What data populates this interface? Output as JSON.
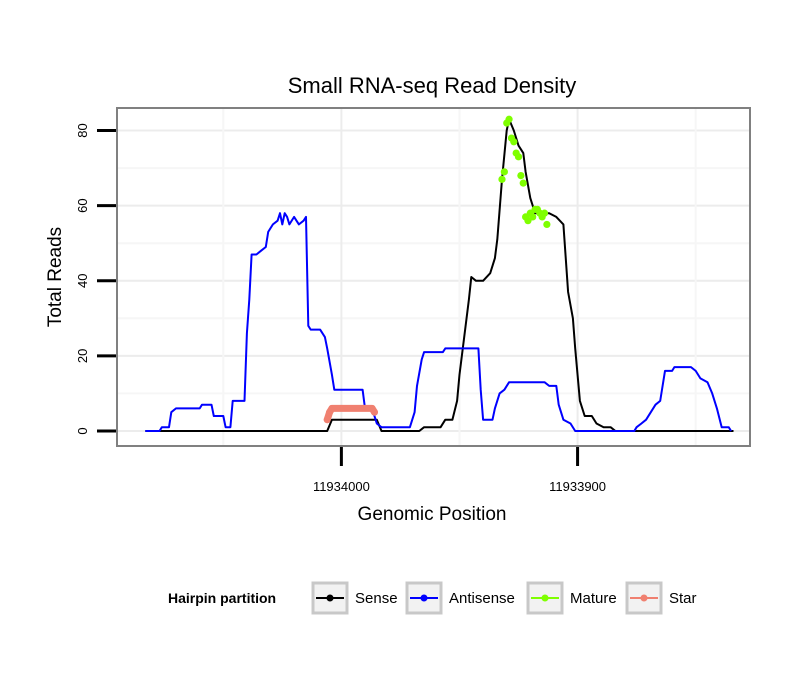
{
  "chart_data": {
    "type": "line",
    "title": "Small RNA-seq Read Density",
    "xlabel": "Genomic Position",
    "ylabel": "Total Reads",
    "x_reversed": true,
    "xlim": [
      11934095,
      11933827
    ],
    "ylim": [
      -4,
      86
    ],
    "x_ticks": [
      11934000,
      11933900
    ],
    "x_tick_labels": [
      "11934000",
      "11933900"
    ],
    "y_ticks": [
      0,
      20,
      40,
      60,
      80
    ],
    "y_tick_labels": [
      "0",
      "20",
      "40",
      "60",
      "80"
    ],
    "grid": true,
    "legend": {
      "title": "Hairpin partition",
      "position": "bottom",
      "entries": [
        {
          "name": "Sense",
          "color": "#000000"
        },
        {
          "name": "Antisense",
          "color": "#0000ff"
        },
        {
          "name": "Mature",
          "color": "#7fff00"
        },
        {
          "name": "Star",
          "color": "#f08070"
        }
      ]
    },
    "series": [
      {
        "name": "Sense",
        "color": "#000000",
        "mode": "line",
        "points": [
          [
            11934083,
            0
          ],
          [
            11934006,
            0
          ],
          [
            11934004,
            3
          ],
          [
            11933985,
            3
          ],
          [
            11933983,
            0
          ],
          [
            11933967,
            0
          ],
          [
            11933965,
            1
          ],
          [
            11933958,
            1
          ],
          [
            11933956,
            3
          ],
          [
            11933953,
            3
          ],
          [
            11933951,
            8
          ],
          [
            11933950,
            15
          ],
          [
            11933948,
            25
          ],
          [
            11933946,
            35
          ],
          [
            11933945,
            41
          ],
          [
            11933943,
            40
          ],
          [
            11933940,
            40
          ],
          [
            11933937,
            42
          ],
          [
            11933935,
            46
          ],
          [
            11933934,
            51
          ],
          [
            11933932,
            67
          ],
          [
            11933930,
            80
          ],
          [
            11933929,
            83
          ],
          [
            11933927,
            80
          ],
          [
            11933925,
            76
          ],
          [
            11933923,
            74
          ],
          [
            11933922,
            69
          ],
          [
            11933920,
            62
          ],
          [
            11933918,
            58
          ],
          [
            11933915,
            58
          ],
          [
            11933912,
            58
          ],
          [
            11933909,
            57
          ],
          [
            11933906,
            55
          ],
          [
            11933904,
            37
          ],
          [
            11933902,
            30
          ],
          [
            11933901,
            22
          ],
          [
            11933899,
            8
          ],
          [
            11933897,
            4
          ],
          [
            11933894,
            4
          ],
          [
            11933892,
            2
          ],
          [
            11933889,
            1
          ],
          [
            11933886,
            1
          ],
          [
            11933884,
            0
          ],
          [
            11933834,
            0
          ]
        ]
      },
      {
        "name": "Antisense",
        "color": "#0000ff",
        "mode": "line",
        "points": [
          [
            11934083,
            0
          ],
          [
            11934077,
            0
          ],
          [
            11934076,
            1
          ],
          [
            11934073,
            1
          ],
          [
            11934072,
            5
          ],
          [
            11934070,
            6
          ],
          [
            11934060,
            6
          ],
          [
            11934059,
            7
          ],
          [
            11934055,
            7
          ],
          [
            11934054,
            4
          ],
          [
            11934050,
            4
          ],
          [
            11934049,
            1
          ],
          [
            11934047,
            1
          ],
          [
            11934046,
            8
          ],
          [
            11934041,
            8
          ],
          [
            11934040,
            26
          ],
          [
            11934039,
            35
          ],
          [
            11934038,
            47
          ],
          [
            11934036,
            47
          ],
          [
            11934034,
            48
          ],
          [
            11934032,
            49
          ],
          [
            11934031,
            53
          ],
          [
            11934029,
            55
          ],
          [
            11934027,
            56
          ],
          [
            11934026,
            58
          ],
          [
            11934025,
            55
          ],
          [
            11934024,
            58
          ],
          [
            11934023,
            57
          ],
          [
            11934022,
            55
          ],
          [
            11934020,
            57
          ],
          [
            11934018,
            55
          ],
          [
            11934016,
            56
          ],
          [
            11934015,
            57
          ],
          [
            11934014,
            28
          ],
          [
            11934013,
            27
          ],
          [
            11934009,
            27
          ],
          [
            11934007,
            25
          ],
          [
            11934006,
            22
          ],
          [
            11934004,
            15
          ],
          [
            11934003,
            11
          ],
          [
            11933991,
            11
          ],
          [
            11933990,
            6
          ],
          [
            11933987,
            6
          ],
          [
            11933985,
            2
          ],
          [
            11933983,
            1
          ],
          [
            11933971,
            1
          ],
          [
            11933969,
            5
          ],
          [
            11933968,
            12
          ],
          [
            11933966,
            19
          ],
          [
            11933965,
            21
          ],
          [
            11933957,
            21
          ],
          [
            11933956,
            22
          ],
          [
            11933942,
            22
          ],
          [
            11933941,
            11
          ],
          [
            11933940,
            3
          ],
          [
            11933936,
            3
          ],
          [
            11933935,
            6
          ],
          [
            11933933,
            10
          ],
          [
            11933931,
            11
          ],
          [
            11933929,
            13
          ],
          [
            11933914,
            13
          ],
          [
            11933912,
            12
          ],
          [
            11933909,
            12
          ],
          [
            11933908,
            7
          ],
          [
            11933906,
            3
          ],
          [
            11933903,
            2
          ],
          [
            11933901,
            0
          ],
          [
            11933876,
            0
          ],
          [
            11933875,
            1
          ],
          [
            11933873,
            2
          ],
          [
            11933871,
            3
          ],
          [
            11933869,
            5
          ],
          [
            11933867,
            7
          ],
          [
            11933865,
            8
          ],
          [
            11933864,
            12
          ],
          [
            11933863,
            16
          ],
          [
            11933860,
            16
          ],
          [
            11933859,
            17
          ],
          [
            11933852,
            17
          ],
          [
            11933850,
            16
          ],
          [
            11933848,
            14
          ],
          [
            11933845,
            13
          ],
          [
            11933843,
            10
          ],
          [
            11933841,
            6
          ],
          [
            11933839,
            1
          ],
          [
            11933836,
            1
          ],
          [
            11933835,
            0
          ]
        ]
      },
      {
        "name": "Mature",
        "color": "#7fff00",
        "mode": "points",
        "points": [
          [
            11933932,
            67
          ],
          [
            11933931,
            69
          ],
          [
            11933930,
            82
          ],
          [
            11933929,
            83
          ],
          [
            11933928,
            78
          ],
          [
            11933927,
            77
          ],
          [
            11933926,
            74
          ],
          [
            11933925,
            73
          ],
          [
            11933924,
            68
          ],
          [
            11933923,
            66
          ],
          [
            11933922,
            57
          ],
          [
            11933921,
            56
          ],
          [
            11933920,
            58
          ],
          [
            11933919,
            57
          ],
          [
            11933918,
            59
          ],
          [
            11933917,
            59
          ],
          [
            11933916,
            58
          ],
          [
            11933915,
            57
          ],
          [
            11933914,
            58
          ],
          [
            11933913,
            55
          ]
        ]
      },
      {
        "name": "Star",
        "color": "#f08070",
        "mode": "thick",
        "points": [
          [
            11934006,
            3
          ],
          [
            11934005,
            5
          ],
          [
            11934004,
            6
          ],
          [
            11933987,
            6
          ],
          [
            11933986,
            5
          ]
        ]
      }
    ]
  }
}
